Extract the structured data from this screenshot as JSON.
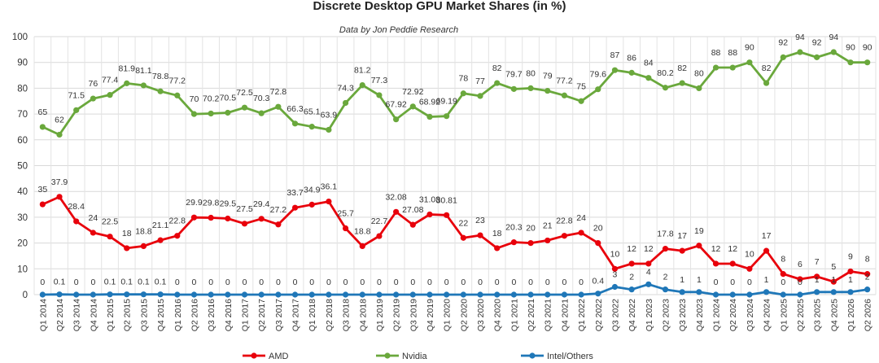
{
  "chart_data": {
    "type": "line",
    "title": "Discrete Desktop GPU Market Shares (in %)",
    "subtitle": "Data by Jon Peddie Research",
    "ylim": [
      0,
      100
    ],
    "yticks": [
      0,
      10,
      20,
      30,
      40,
      50,
      60,
      70,
      80,
      90,
      100
    ],
    "grid": "vertical and horizontal",
    "legend_position": "bottom",
    "categories": [
      "Q1 2014",
      "Q2 2014",
      "Q3 2014",
      "Q4 2014",
      "Q1 2015",
      "Q2 2015",
      "Q3 2015",
      "Q4 2015",
      "Q1 2016",
      "Q2 2016",
      "Q3 2016",
      "Q4 2016",
      "Q1 2017",
      "Q2 2017",
      "Q3 2017",
      "Q4 2017",
      "Q1 2018",
      "Q2 2018",
      "Q3 2018",
      "Q4 2018",
      "Q1 2019",
      "Q2 2019",
      "Q3 2019",
      "Q4 2019",
      "Q1 2020",
      "Q2 2020",
      "Q3 2020",
      "Q4 2020",
      "Q1 2021",
      "Q2 2021",
      "Q3 2021",
      "Q4 2021",
      "Q1 2022",
      "Q2 2022",
      "Q3 2022",
      "Q4 2022",
      "Q1 2023",
      "Q2 2023",
      "Q3 2023",
      "Q4 2023",
      "Q1 2024",
      "Q2 2024",
      "Q3 2024",
      "Q4 2024",
      "Q1 2025",
      "Q2 2025",
      "Q3 2025",
      "Q4 2025",
      "Q1 2026",
      "Q2 2026"
    ],
    "series": [
      {
        "name": "AMD",
        "color": "#e8000b",
        "values": [
          35,
          37.9,
          28.4,
          24,
          22.5,
          18,
          18.8,
          21.1,
          22.8,
          29.9,
          29.8,
          29.5,
          27.5,
          29.4,
          27.2,
          33.7,
          34.9,
          36.1,
          25.7,
          18.8,
          22.7,
          32.08,
          27.08,
          31.08,
          30.81,
          22,
          23,
          18,
          20.3,
          20,
          21,
          22.8,
          24,
          20,
          10,
          12,
          12,
          17.8,
          17,
          19,
          12,
          12,
          10,
          17,
          8,
          6,
          7,
          5,
          9,
          8
        ],
        "labels": [
          "35",
          "37.9",
          "28.4",
          "24",
          "22.5",
          "18",
          "18.8",
          "21.1",
          "22.8",
          "29.9",
          "29.8",
          "29.5",
          "27.5",
          "29.4",
          "27.2",
          "33.7",
          "34.9",
          "36.1",
          "25.7",
          "18.8",
          "22.7",
          "32.08",
          "27.08",
          "31.08",
          "30.81",
          "22",
          "23",
          "18",
          "20.3",
          "20",
          "21",
          "22.8",
          "24",
          "20",
          "10",
          "12",
          "12",
          "17.8",
          "17",
          "19",
          "12",
          "12",
          "10",
          "17",
          "8",
          "6",
          "7",
          "5",
          "9",
          "8"
        ]
      },
      {
        "name": "Nvidia",
        "color": "#6aa83c",
        "values": [
          65,
          62,
          71.5,
          76,
          77.4,
          81.9,
          81.1,
          78.8,
          77.2,
          70,
          70.2,
          70.5,
          72.5,
          70.3,
          72.8,
          66.3,
          65.1,
          63.9,
          74.3,
          81.2,
          77.3,
          67.92,
          72.92,
          68.92,
          69.19,
          78,
          77,
          82,
          79.7,
          80,
          79,
          77.2,
          75,
          79.6,
          87,
          86,
          84,
          80.2,
          82,
          80,
          88,
          88,
          90,
          82,
          92,
          94,
          92,
          94,
          90,
          90
        ],
        "labels": [
          "65",
          "62",
          "71.5",
          "76",
          "77.4",
          "81.9",
          "81.1",
          "78.8",
          "77.2",
          "70",
          "70.2",
          "70.5",
          "72.5",
          "70.3",
          "72.8",
          "66.3",
          "65.1",
          "63.9",
          "74.3",
          "81.2",
          "77.3",
          "67.92",
          "72.92",
          "68.92",
          "69.19",
          "78",
          "77",
          "82",
          "79.7",
          "80",
          "79",
          "77.2",
          "75",
          "79.6",
          "87",
          "86",
          "84",
          "80.2",
          "82",
          "80",
          "88",
          "88",
          "90",
          "82",
          "92",
          "94",
          "92",
          "94",
          "90",
          "90"
        ]
      },
      {
        "name": "Intel/Others",
        "color": "#1f77b8",
        "values": [
          0,
          0.1,
          0,
          0,
          0.1,
          0.1,
          0.1,
          0.1,
          0,
          0,
          0,
          0,
          0,
          0,
          0,
          0,
          0,
          0,
          0,
          0,
          0,
          0,
          0,
          0,
          0,
          0,
          0,
          0,
          0,
          0,
          0,
          0,
          0,
          0.4,
          3,
          2,
          4,
          2,
          1,
          1,
          0,
          0,
          0,
          1,
          0,
          0,
          1,
          1,
          1,
          2
        ],
        "labels": [
          "0",
          "0.1",
          "0",
          "0",
          "0.1",
          "0.1",
          "0.1",
          "0.1",
          "0",
          "0",
          "0",
          "0",
          "0",
          "0",
          "0",
          "0",
          "0",
          "0",
          "0",
          "0",
          "0",
          "0",
          "0",
          "0",
          "0",
          "0",
          "0",
          "0",
          "0",
          "0",
          "0",
          "0",
          "0",
          "0.4",
          "3",
          "2",
          "4",
          "2",
          "1",
          "1",
          "0",
          "0",
          "0",
          "1",
          "0",
          "0",
          "1",
          "1",
          "1",
          "2"
        ]
      }
    ]
  }
}
